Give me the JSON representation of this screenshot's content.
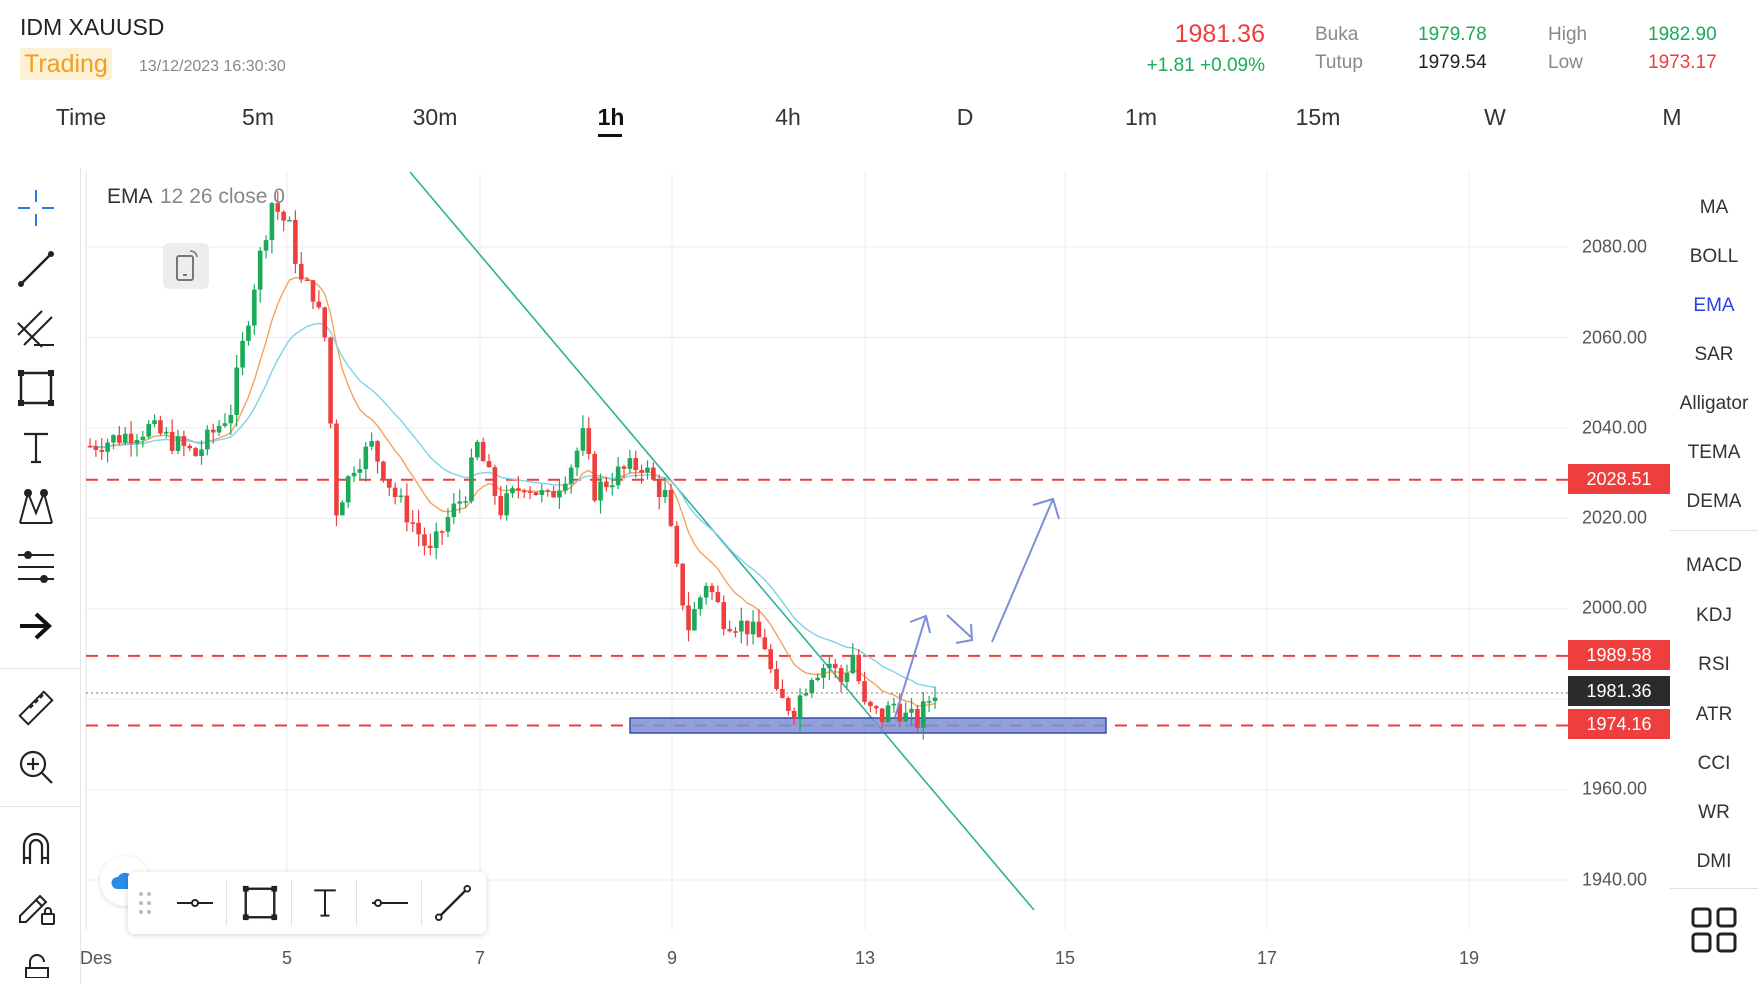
{
  "header": {
    "symbol": "IDM XAUUSD",
    "badge": "Trading",
    "timestamp": "13/12/2023 16:30:30",
    "price": "1981.36",
    "change": "+1.81  +0.09%",
    "open_label": "Buka",
    "open_value": "1979.78",
    "close_label": "Tutup",
    "close_value": "1979.54",
    "high_label": "High",
    "high_value": "1982.90",
    "low_label": "Low",
    "low_value": "1973.17"
  },
  "timeframes": [
    "Time",
    "5m",
    "30m",
    "1h",
    "4h",
    "D",
    "1m",
    "15m",
    "W",
    "M"
  ],
  "active_timeframe": "1h",
  "legend": {
    "ema": "EMA",
    "params": "12 26 close 0"
  },
  "indicators": [
    "MA",
    "BOLL",
    "EMA",
    "SAR",
    "Alligator",
    "TEMA",
    "DEMA",
    "MACD",
    "KDJ",
    "RSI",
    "ATR",
    "CCI",
    "WR",
    "DMI"
  ],
  "active_indicator": "EMA",
  "tools": [
    "crosshair-icon",
    "trend-line-icon",
    "parallel-channel-icon",
    "rectangle-icon",
    "text-icon",
    "pattern-icon",
    "fibonacci-icon",
    "arrow-icon",
    "ruler-icon",
    "zoom-icon",
    "magnet-icon",
    "pencil-lock-icon"
  ],
  "colors": {
    "up": "#1aaa5a",
    "down": "#ee3e3e",
    "ema12": "#f5a35c",
    "ema26": "#7fd3e8",
    "accent": "#2d3ee8",
    "trendline": "#2bb394",
    "zone": "#7b8fd6"
  },
  "chart_data": {
    "type": "candlestick",
    "y_ticks": [
      "2080.00",
      "2060.00",
      "2040.00",
      "2020.00",
      "2000.00",
      "1960.00",
      "1940.00"
    ],
    "x_ticks": [
      "Des",
      "5",
      "7",
      "9",
      "13",
      "15",
      "17",
      "19"
    ],
    "ylim": [
      1930,
      2090
    ],
    "current_price": "1981.36",
    "levels": [
      {
        "price": "2028.51",
        "style": "dashed-red"
      },
      {
        "price": "1989.58",
        "style": "dashed-red"
      },
      {
        "price": "1974.16",
        "style": "dashed-red"
      }
    ],
    "series": [
      {
        "name": "EMA 12"
      },
      {
        "name": "EMA 26"
      }
    ],
    "path": [
      [
        0,
        2036
      ],
      [
        10,
        2040
      ],
      [
        18,
        2034
      ],
      [
        24,
        2044
      ],
      [
        28,
        2072
      ],
      [
        31,
        2090
      ],
      [
        34,
        2084
      ],
      [
        36,
        2072
      ],
      [
        38,
        2070
      ],
      [
        40,
        2060
      ],
      [
        42,
        2022
      ],
      [
        45,
        2032
      ],
      [
        48,
        2036
      ],
      [
        52,
        2025
      ],
      [
        55,
        2019
      ],
      [
        58,
        2012
      ],
      [
        61,
        2020
      ],
      [
        64,
        2026
      ],
      [
        66,
        2036
      ],
      [
        70,
        2022
      ],
      [
        74,
        2028
      ],
      [
        78,
        2024
      ],
      [
        82,
        2032
      ],
      [
        84,
        2038
      ],
      [
        86,
        2026
      ],
      [
        90,
        2030
      ],
      [
        94,
        2032
      ],
      [
        96,
        2028
      ],
      [
        98,
        2025
      ],
      [
        100,
        2008
      ],
      [
        102,
        1996
      ],
      [
        105,
        2006
      ],
      [
        108,
        1998
      ],
      [
        112,
        1996
      ],
      [
        115,
        1992
      ],
      [
        117,
        1980
      ],
      [
        120,
        1978
      ],
      [
        123,
        1986
      ],
      [
        126,
        1988
      ],
      [
        128,
        1984
      ],
      [
        130,
        1990
      ],
      [
        132,
        1978
      ],
      [
        135,
        1976
      ],
      [
        137,
        1979
      ],
      [
        139,
        1976
      ],
      [
        141,
        1975
      ],
      [
        143,
        1980
      ],
      [
        144,
        1982
      ]
    ]
  }
}
